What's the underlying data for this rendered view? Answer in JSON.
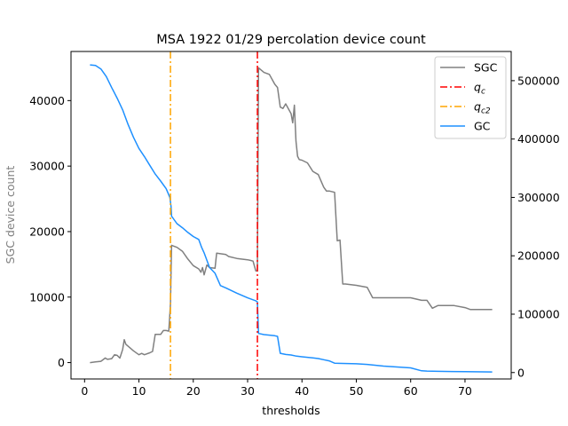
{
  "chart_data": {
    "type": "line",
    "title": "MSA 1922 01/29 percolation device count",
    "xlabel": "thresholds",
    "ylabel": "SGC device count",
    "ylabel_color": "#808080",
    "xlim": [
      -2.5,
      78.5
    ],
    "ylim": [
      -2500,
      47500
    ],
    "y2lim": [
      -11000,
      550000
    ],
    "x_ticks": [
      0,
      10,
      20,
      30,
      40,
      50,
      60,
      70
    ],
    "y_ticks": [
      0,
      10000,
      20000,
      30000,
      40000
    ],
    "y2_ticks": [
      0,
      100000,
      200000,
      300000,
      400000,
      500000
    ],
    "grid": false,
    "legend_position": "upper right",
    "legend": [
      {
        "label": "SGC",
        "color": "#808080",
        "style": "solid"
      },
      {
        "label": "q",
        "sub": "c",
        "color": "#ff0000",
        "style": "dashdot"
      },
      {
        "label": "q",
        "sub": "c2",
        "color": "#ffa500",
        "style": "dashdot"
      },
      {
        "label": "GC",
        "color": "#1e90ff",
        "style": "solid"
      }
    ],
    "vlines": [
      {
        "name": "q_c",
        "x": 31.8,
        "color": "#ff0000"
      },
      {
        "name": "q_c2",
        "x": 15.8,
        "color": "#ffa500"
      }
    ],
    "series": [
      {
        "name": "SGC",
        "axis": "left",
        "color": "#808080",
        "x": [
          1,
          2,
          3,
          3.8,
          4.2,
          5,
          5.5,
          6,
          6.5,
          7,
          7.3,
          7.6,
          8,
          9,
          10,
          10.5,
          11,
          12,
          12.5,
          13,
          14,
          14.5,
          15,
          15.5,
          15.8,
          16,
          17,
          18,
          19,
          20,
          21,
          21.4,
          21.7,
          22,
          22.5,
          23,
          24,
          24.3,
          26,
          26.5,
          28,
          30,
          30.5,
          31,
          31.5,
          31.8,
          32,
          33,
          34,
          35,
          35.5,
          36,
          36.5,
          37,
          38,
          38.3,
          38.6,
          38.9,
          39.2,
          39.5,
          40,
          41,
          42,
          43,
          44,
          44.5,
          45,
          46,
          46.5,
          47,
          47.5,
          48,
          50,
          52,
          53,
          55,
          60,
          62,
          63,
          64,
          65,
          66,
          68,
          70,
          71,
          75
        ],
        "y": [
          0,
          100,
          200,
          700,
          500,
          600,
          1200,
          1100,
          700,
          2000,
          3500,
          2800,
          2500,
          1800,
          1200,
          1400,
          1200,
          1500,
          1700,
          4300,
          4300,
          4900,
          4900,
          4800,
          9000,
          17900,
          17600,
          17000,
          15800,
          14800,
          14300,
          13800,
          14500,
          13400,
          14900,
          14500,
          14400,
          16700,
          16500,
          16200,
          15900,
          15700,
          15600,
          15500,
          14000,
          14000,
          45000,
          44300,
          44000,
          42500,
          42000,
          39000,
          38800,
          39500,
          38000,
          36600,
          39300,
          33800,
          31500,
          31000,
          30900,
          30500,
          29200,
          28700,
          26800,
          26200,
          26200,
          26000,
          18600,
          18700,
          12000,
          12000,
          11800,
          11500,
          9900,
          9900,
          9900,
          9500,
          9500,
          8300,
          8700,
          8700,
          8700,
          8400,
          8100,
          8100
        ]
      },
      {
        "name": "GC",
        "axis": "right",
        "color": "#1e90ff",
        "x": [
          1,
          2,
          3,
          4,
          5,
          6,
          7,
          8,
          9,
          10,
          11,
          12,
          13,
          14,
          15,
          15.7,
          15.9,
          16,
          17,
          18,
          19,
          20,
          21,
          21.5,
          22,
          23,
          24,
          25,
          26,
          28,
          30,
          31.5,
          31.8,
          32,
          33,
          35,
          35.5,
          36,
          37,
          38,
          39,
          40,
          42,
          43,
          44,
          45,
          46,
          50,
          52,
          53,
          55,
          60,
          62,
          63,
          65,
          70,
          75
        ],
        "y": [
          527000,
          526000,
          520000,
          507000,
          488000,
          470000,
          450000,
          425000,
          403000,
          384000,
          370000,
          355000,
          340000,
          328000,
          315000,
          300000,
          285000,
          268000,
          255000,
          248000,
          240000,
          233000,
          228000,
          215000,
          205000,
          180000,
          170000,
          149000,
          145000,
          136000,
          128000,
          123000,
          121000,
          67000,
          65000,
          63000,
          62000,
          33000,
          31000,
          30000,
          28000,
          27000,
          25000,
          24000,
          22000,
          20000,
          16000,
          15000,
          14000,
          13000,
          11000,
          8000,
          3000,
          2500,
          2000,
          1500,
          1000
        ]
      }
    ]
  }
}
